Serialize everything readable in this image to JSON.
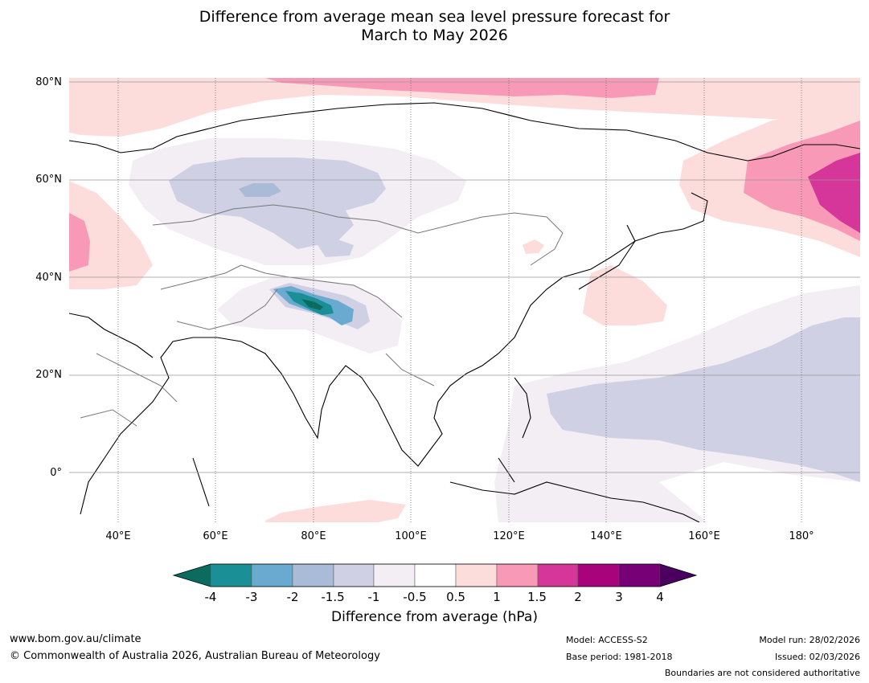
{
  "title": {
    "line1": "Difference from average mean sea level pressure forecast for",
    "line2": "March to May 2026"
  },
  "axes": {
    "lat_labels": [
      "80°N",
      "60°N",
      "40°N",
      "20°N",
      "0°"
    ],
    "lon_labels": [
      "40°E",
      "60°E",
      "80°E",
      "100°E",
      "120°E",
      "140°E",
      "160°E",
      "180°"
    ]
  },
  "colorbar": {
    "title": "Difference from average (hPa)",
    "tick_labels": [
      "-4",
      "-3",
      "-2",
      "-1.5",
      "-1",
      "-0.5",
      "0.5",
      "1",
      "1.5",
      "2",
      "3",
      "4"
    ],
    "colors": [
      "#0b6b5e",
      "#1a8f96",
      "#6aa9d0",
      "#a9bbd7",
      "#cfd0e4",
      "#f3edf4",
      "#ffffff",
      "#fddcdc",
      "#f89ab7",
      "#d6359a",
      "#a8037b",
      "#780077",
      "#4b0060"
    ]
  },
  "footer": {
    "website": "www.bom.gov.au/climate",
    "copyright": "© Commonwealth of Australia 2026, Australian Bureau of Meteorology",
    "model": "Model: ACCESS-S2",
    "base_period": "Base period: 1981-2018",
    "model_run": "Model run: 28/02/2026",
    "issued": "Issued: 02/03/2026",
    "boundaries_note": "Boundaries are not considered authoritative"
  }
}
